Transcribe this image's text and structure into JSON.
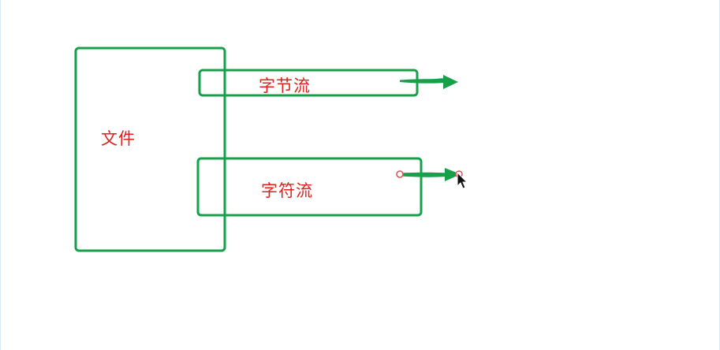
{
  "colors": {
    "stroke": "#16a04a",
    "label": "#e0201c",
    "background": "#ffffff",
    "handle": "#e05050"
  },
  "nodes": {
    "file_label": "文件",
    "byte_stream_label": "字节流",
    "char_stream_label": "字符流"
  },
  "edges": [
    {
      "from": "字节流",
      "direction": "right"
    },
    {
      "from": "字符流",
      "direction": "right",
      "selected": true
    }
  ],
  "cursor": {
    "icon": "mouse-pointer-icon"
  }
}
